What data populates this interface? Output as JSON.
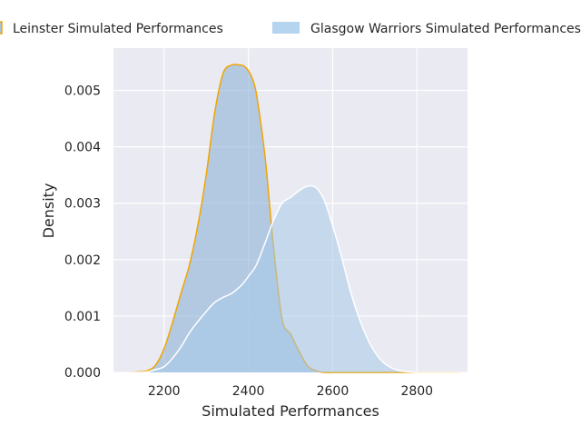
{
  "chart_data": {
    "type": "area",
    "subtype": "kde-density",
    "title": "",
    "xlabel": "Simulated Performances",
    "ylabel": "Density",
    "xlim": [
      2080,
      2920
    ],
    "ylim": [
      0,
      0.00575
    ],
    "xticks": [
      2200,
      2400,
      2600,
      2800
    ],
    "yticks": [
      0.0,
      0.001,
      0.002,
      0.003,
      0.004,
      0.005
    ],
    "ytick_labels": [
      "0.000",
      "0.001",
      "0.002",
      "0.003",
      "0.004",
      "0.005"
    ],
    "grid": true,
    "background": "#eaeaf2",
    "legend": {
      "position": "top",
      "entries": [
        "Leinster Simulated Performances",
        "Glasgow Warriors Simulated Performances"
      ]
    },
    "x": [
      2120,
      2140,
      2160,
      2180,
      2200,
      2220,
      2240,
      2260,
      2280,
      2300,
      2320,
      2340,
      2360,
      2380,
      2390,
      2400,
      2410,
      2420,
      2440,
      2460,
      2480,
      2500,
      2520,
      2540,
      2560,
      2580,
      2600,
      2620,
      2640,
      2660,
      2680,
      2700,
      2720,
      2740,
      2760,
      2780,
      2800,
      2820,
      2840,
      2860,
      2880,
      2900
    ],
    "series": [
      {
        "name": "Leinster Simulated Performances",
        "fill": "#92b4d8",
        "fill_opacity": 0.62,
        "line": "#f0a500",
        "values": [
          0,
          1e-05,
          3e-05,
          0.00013,
          0.00042,
          0.00088,
          0.0014,
          0.0019,
          0.0026,
          0.0035,
          0.0046,
          0.0053,
          0.00545,
          0.00545,
          0.00543,
          0.00535,
          0.0052,
          0.0049,
          0.0038,
          0.0022,
          0.00095,
          0.00068,
          0.00038,
          0.00012,
          3e-05,
          0,
          0,
          0,
          0,
          0,
          0,
          0,
          0,
          0,
          0,
          0,
          0,
          0,
          0,
          0,
          0,
          0
        ]
      },
      {
        "name": "Glasgow Warriors Simulated Performances",
        "fill": "#a6c8e8",
        "fill_opacity": 0.55,
        "line": "#ffffff",
        "values": [
          0,
          0,
          1e-05,
          5e-05,
          0.0001,
          0.00025,
          0.00045,
          0.0007,
          0.0009,
          0.00108,
          0.00124,
          0.00133,
          0.0014,
          0.00152,
          0.0016,
          0.0017,
          0.0018,
          0.00192,
          0.0023,
          0.0027,
          0.003,
          0.0031,
          0.00322,
          0.0033,
          0.00328,
          0.00305,
          0.0026,
          0.00208,
          0.0015,
          0.00102,
          0.00064,
          0.00036,
          0.00018,
          8e-05,
          3e-05,
          1e-05,
          0,
          0,
          0,
          0,
          0,
          0
        ]
      }
    ]
  }
}
